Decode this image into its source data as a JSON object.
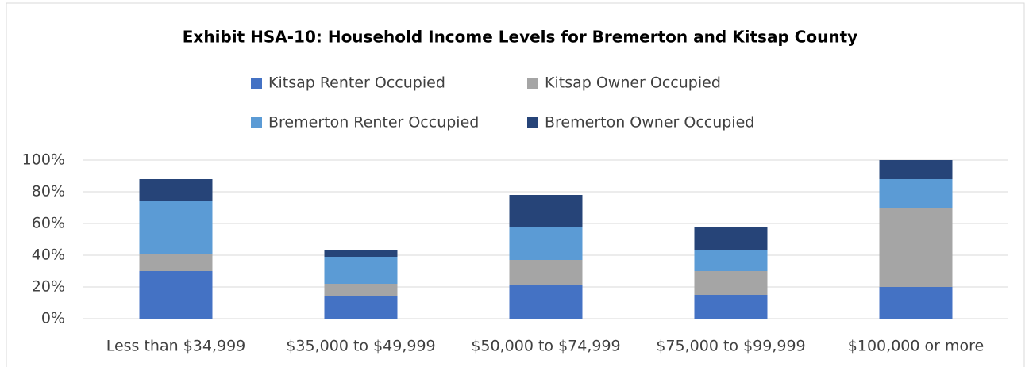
{
  "chart_data": {
    "type": "stacked_bar",
    "title": "Exhibit HSA-10: Household Income Levels for Bremerton and Kitsap County",
    "categories": [
      "Less than $34,999",
      "$35,000 to $49,999",
      "$50,000 to $74,999",
      "$75,000 to $99,999",
      "$100,000 or more"
    ],
    "series": [
      {
        "name": "Kitsap Renter Occupied",
        "color": "#4472c4",
        "values": [
          30,
          14,
          21,
          15,
          20
        ]
      },
      {
        "name": "Kitsap Owner Occupied",
        "color": "#a5a5a5",
        "values": [
          11,
          8,
          16,
          15,
          50
        ]
      },
      {
        "name": "Bremerton Renter Occupied",
        "color": "#5b9bd5",
        "values": [
          33,
          17,
          21,
          13,
          18
        ]
      },
      {
        "name": "Bremerton Owner Occupied",
        "color": "#264478",
        "values": [
          14,
          4,
          20,
          15,
          12
        ]
      }
    ],
    "ylim": [
      0,
      100
    ],
    "yticks": [
      {
        "value": 0,
        "label": "0%"
      },
      {
        "value": 20,
        "label": "20%"
      },
      {
        "value": 40,
        "label": "40%"
      },
      {
        "value": 60,
        "label": "60%"
      },
      {
        "value": 80,
        "label": "80%"
      },
      {
        "value": 100,
        "label": "100%"
      }
    ],
    "grid": true,
    "legend": "top"
  }
}
